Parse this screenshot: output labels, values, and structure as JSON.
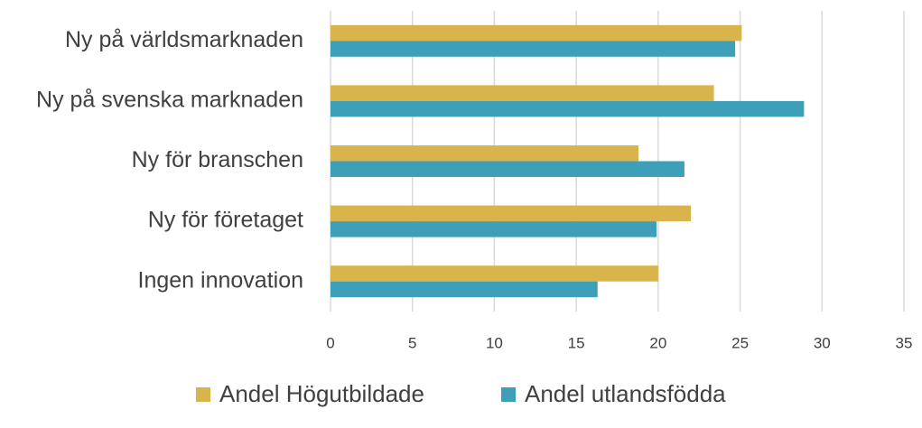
{
  "chart_data": {
    "type": "bar",
    "orientation": "horizontal",
    "categories": [
      "Ny på världsmarknaden",
      "Ny på svenska marknaden",
      "Ny för branschen",
      "Ny för företaget",
      "Ingen innovation"
    ],
    "series": [
      {
        "name": "Andel Högutbildade",
        "color": "#d9b34b",
        "values": [
          25.1,
          23.4,
          18.8,
          22.0,
          20.0
        ]
      },
      {
        "name": "Andel utlandsfödda",
        "color": "#3e9fb8",
        "values": [
          24.7,
          28.9,
          21.6,
          19.9,
          16.3
        ]
      }
    ],
    "xlim": [
      0,
      35
    ],
    "xticks": [
      0,
      5,
      10,
      15,
      20,
      25,
      30,
      35
    ],
    "grid": true,
    "legend": "bottom"
  }
}
